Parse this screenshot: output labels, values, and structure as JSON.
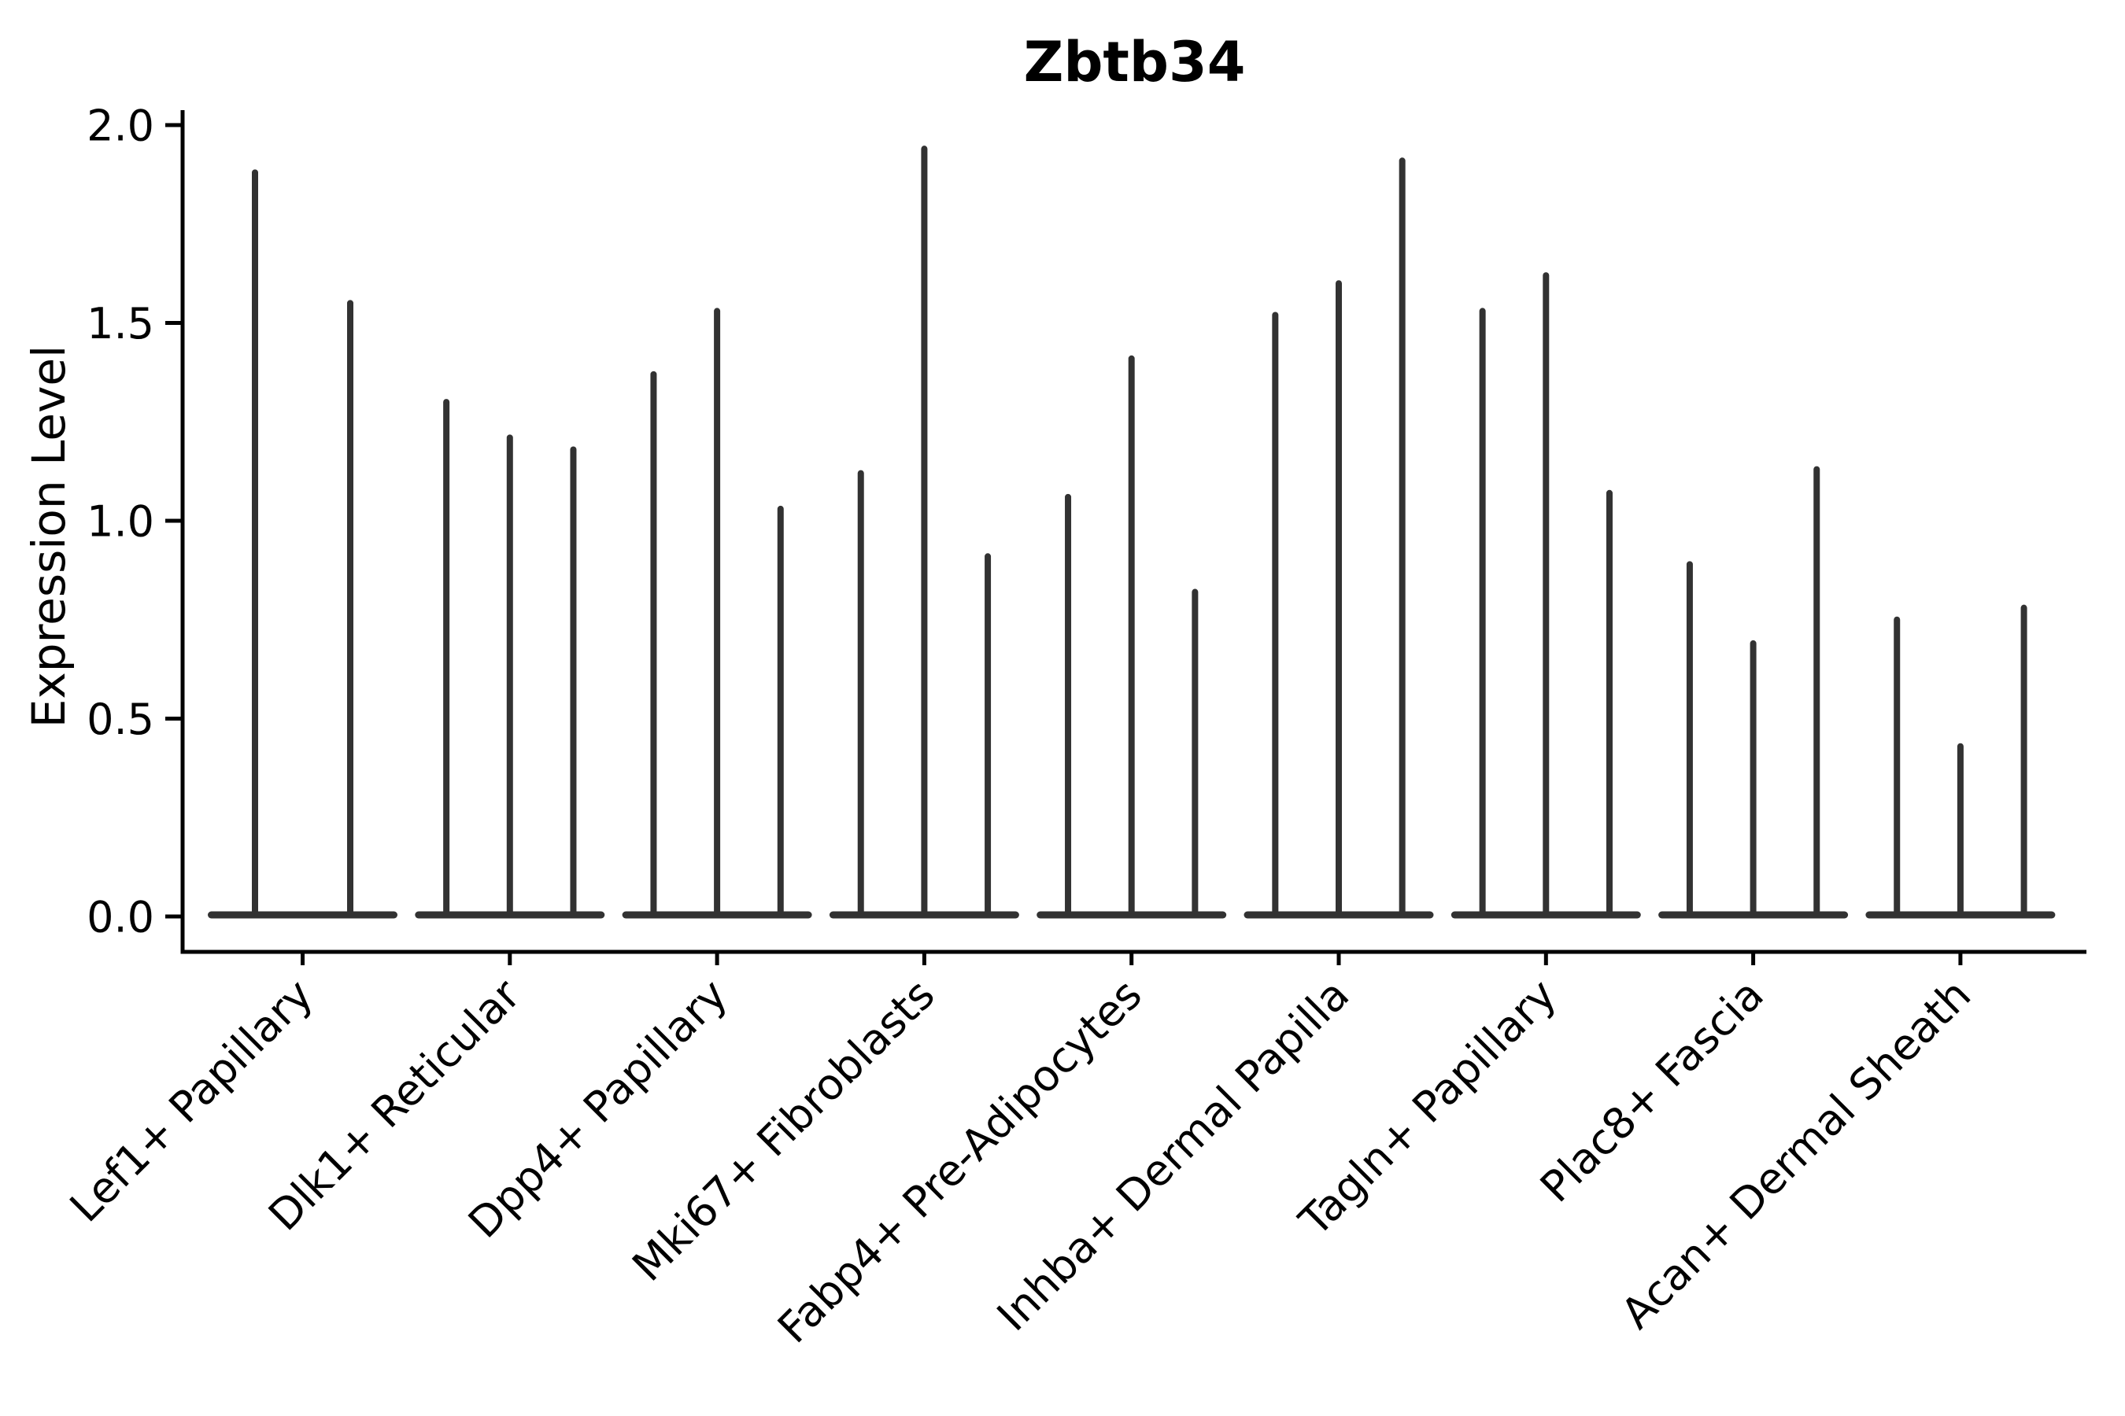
{
  "chart_data": {
    "type": "violin",
    "title": "Zbtb34",
    "ylabel": "Expression Level",
    "xlabel": "",
    "ylim": [
      0.0,
      2.0
    ],
    "yticks": [
      0.0,
      0.5,
      1.0,
      1.5,
      2.0
    ],
    "grid": false,
    "legend": "none",
    "categories": [
      "Lef1+ Papillary",
      "Dlk1+ Reticular",
      "Dpp4+ Papillary",
      "Mki67+ Fibroblasts",
      "Fabp4+ Pre-Adipocytes",
      "Inhba+ Dermal Papilla",
      "Tagln+ Papillary",
      "Plac8+ Fascia",
      "Acan+ Dermal Sheath"
    ],
    "series": [
      {
        "category": "Lef1+ Papillary",
        "violin_max_values": [
          1.88,
          1.55
        ]
      },
      {
        "category": "Dlk1+ Reticular",
        "violin_max_values": [
          1.3,
          1.21,
          1.18
        ]
      },
      {
        "category": "Dpp4+ Papillary",
        "violin_max_values": [
          1.37,
          1.53,
          1.03
        ]
      },
      {
        "category": "Mki67+ Fibroblasts",
        "violin_max_values": [
          1.12,
          1.94,
          0.91
        ]
      },
      {
        "category": "Fabp4+ Pre-Adipocytes",
        "violin_max_values": [
          1.06,
          1.41,
          0.82
        ]
      },
      {
        "category": "Inhba+ Dermal Papilla",
        "violin_max_values": [
          1.52,
          1.6,
          1.91
        ]
      },
      {
        "category": "Tagln+ Papillary",
        "violin_max_values": [
          1.53,
          1.62,
          1.07
        ]
      },
      {
        "category": "Plac8+ Fascia",
        "violin_max_values": [
          0.89,
          0.69,
          1.13
        ]
      },
      {
        "category": "Acan+ Dermal Sheath",
        "violin_max_values": [
          0.75,
          0.43,
          0.78
        ]
      }
    ]
  },
  "style": {
    "violin_color": "#323232",
    "axis_color": "#000000",
    "text_color": "#000000",
    "background": "#ffffff"
  }
}
